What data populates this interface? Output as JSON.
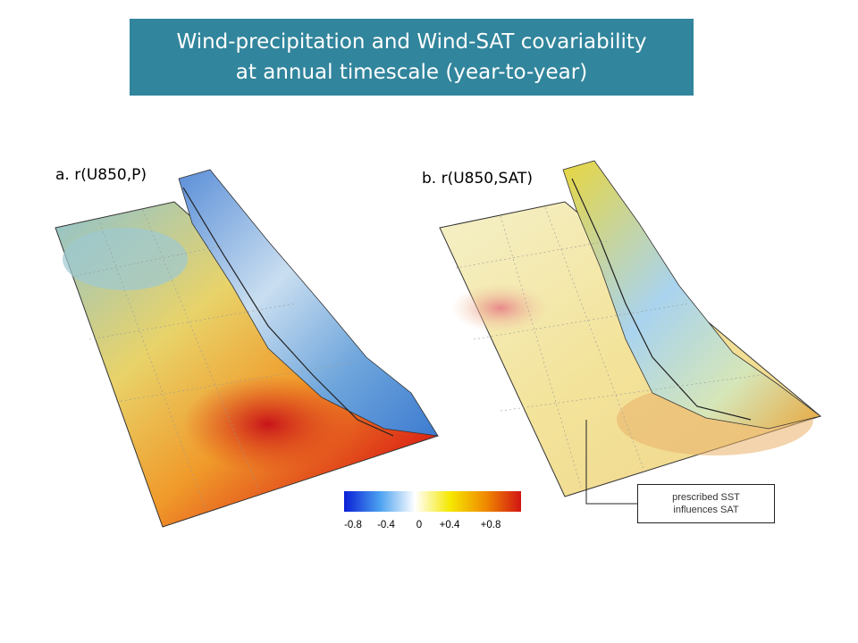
{
  "title": {
    "line1": "Wind-precipitation and Wind-SAT covariability",
    "line2": "at annual timescale (year-to-year)"
  },
  "panel_a": {
    "label": "a. r(U850,P)"
  },
  "panel_b": {
    "label": "b. r(U850,SAT)"
  },
  "colorbar": {
    "ticks": [
      "-0.8",
      "-0.4",
      "0",
      "+0.4",
      "+0.8"
    ],
    "colors": [
      "#0a1fd6",
      "#4aa0f0",
      "#ffffff",
      "#f5e800",
      "#f08a00",
      "#d21414"
    ]
  },
  "annotation": {
    "line1": "prescribed SST",
    "line2": "influences SAT"
  }
}
